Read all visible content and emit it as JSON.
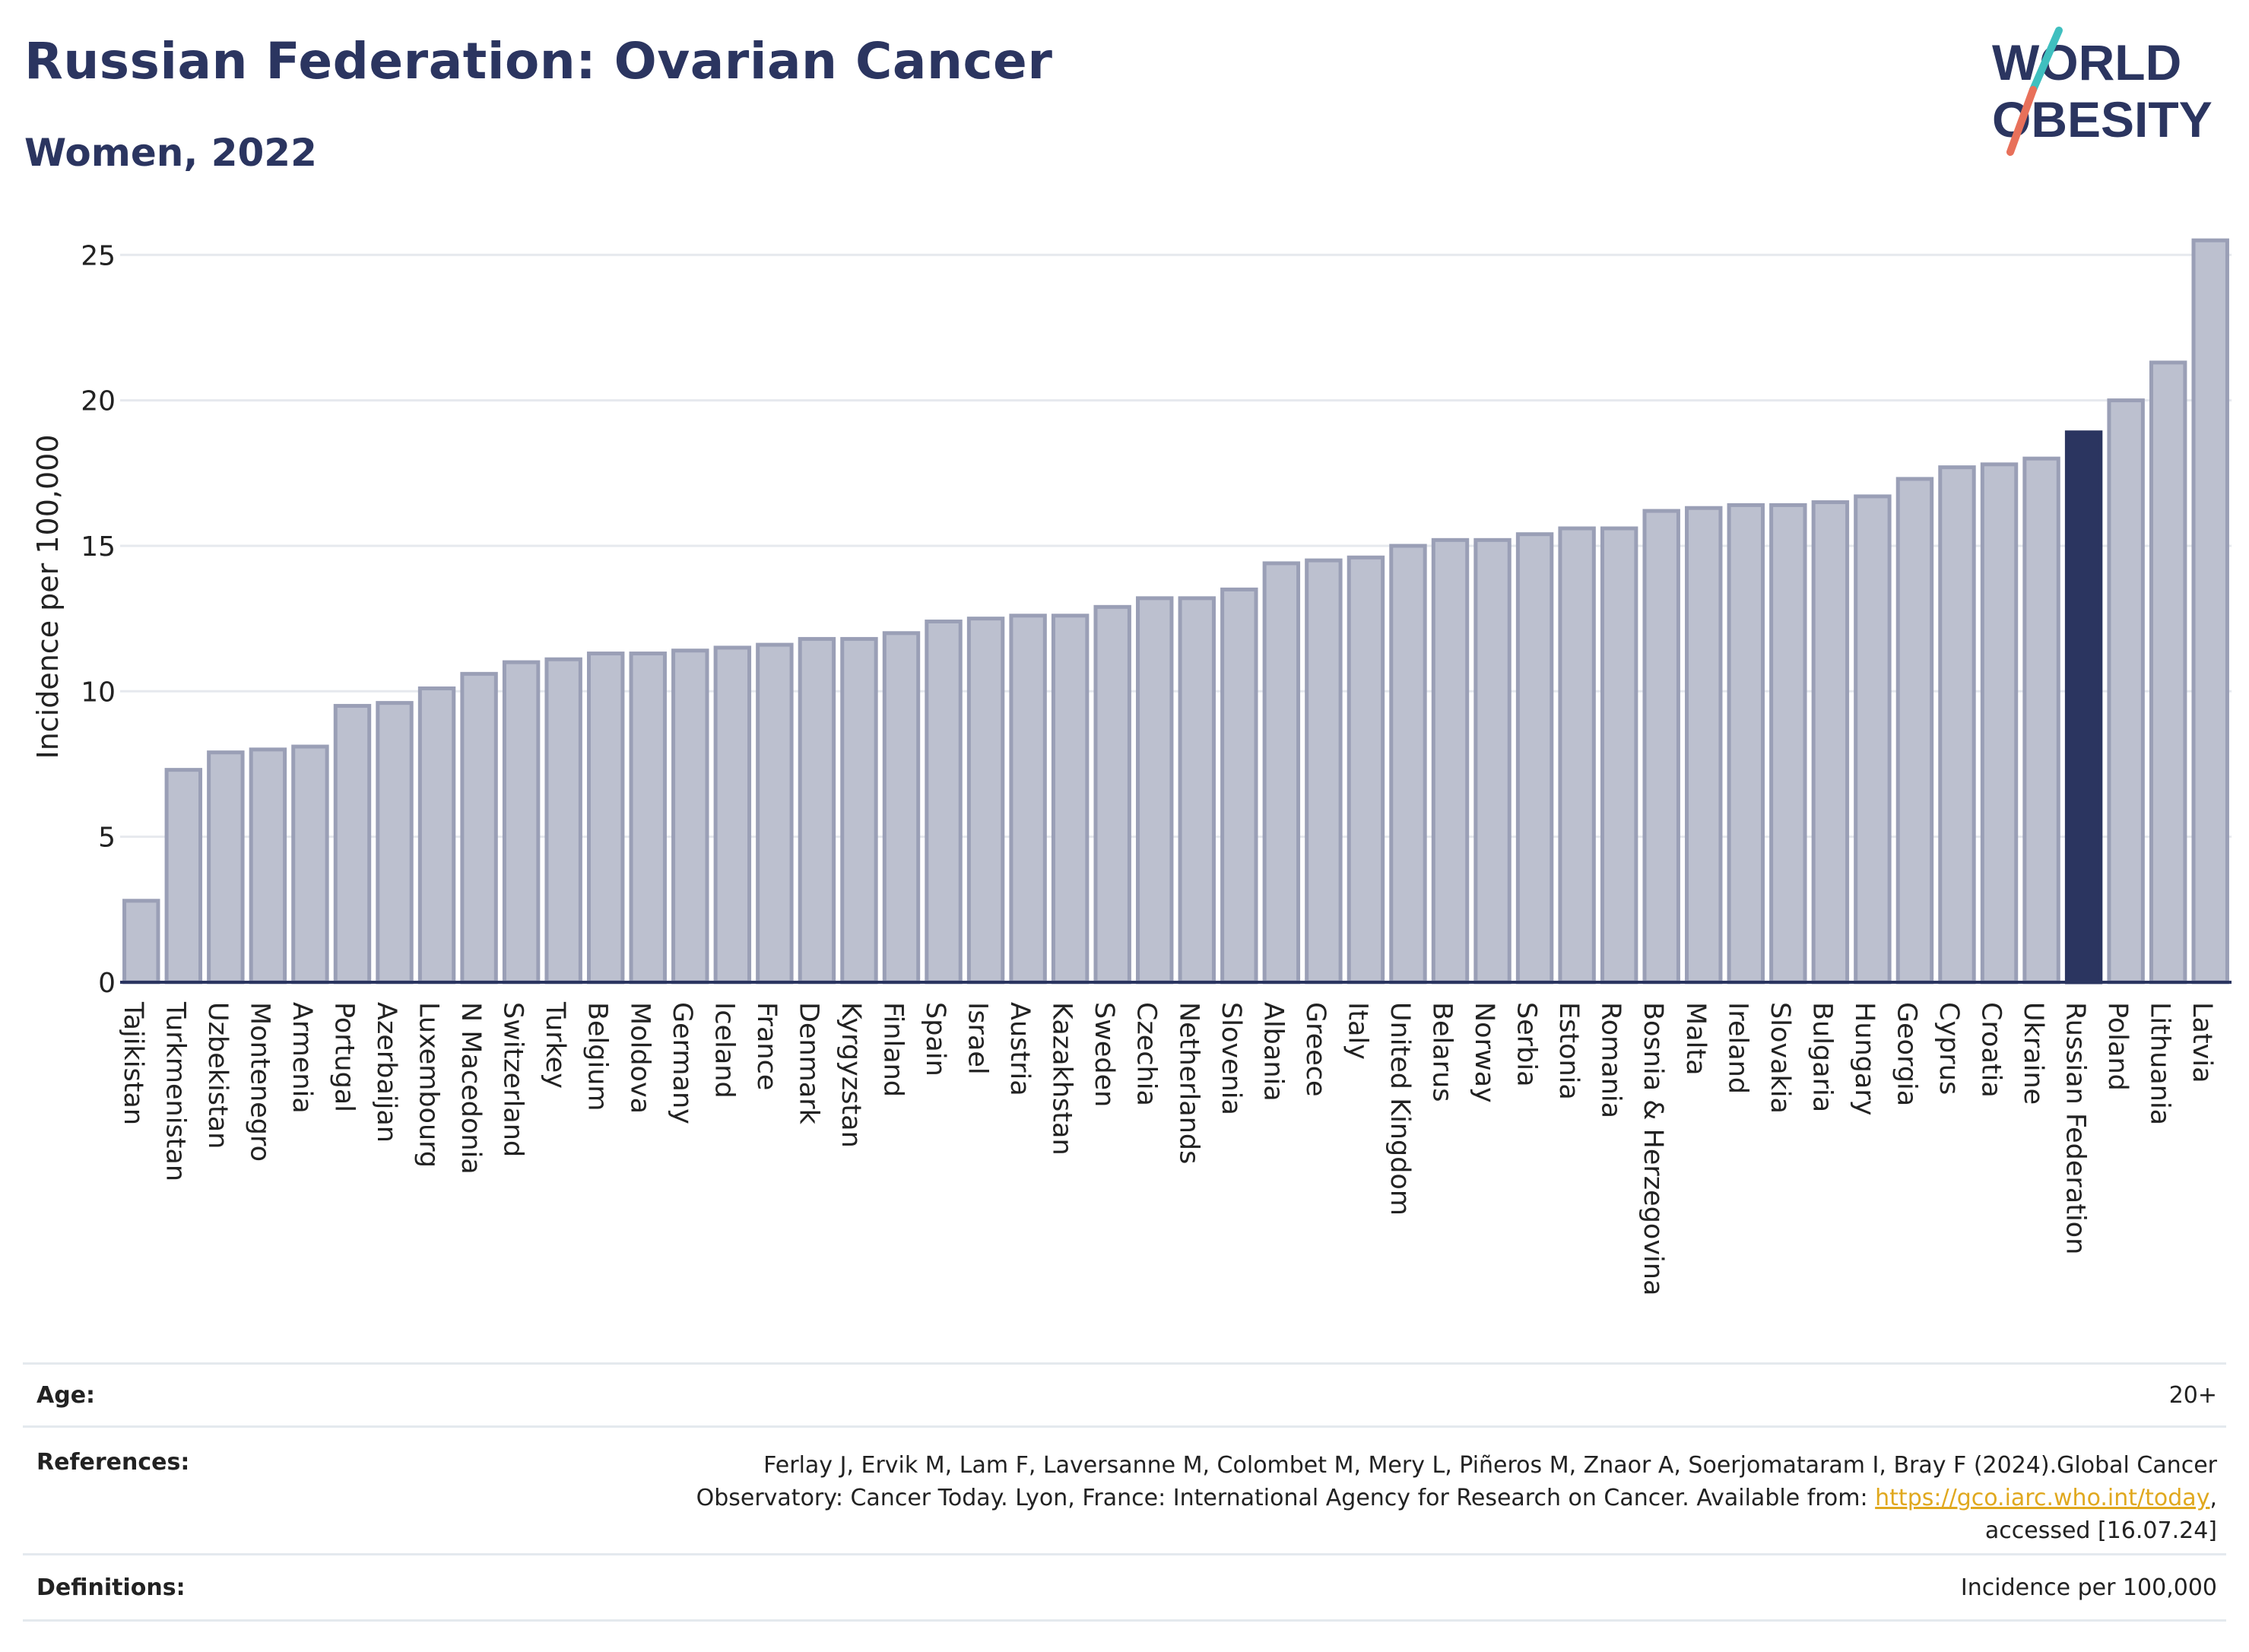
{
  "header": {
    "title": "Russian Federation: Ovarian Cancer",
    "subtitle": "Women, 2022"
  },
  "logo": {
    "line1": "WORLD",
    "line2": "OBESITY",
    "colors": {
      "text": "#2b3560",
      "slash_top": "#3fbfbf",
      "slash_bottom": "#e8705a"
    }
  },
  "colors": {
    "bar_default": "#bcc0cf",
    "bar_default_stroke": "#9a9fb6",
    "bar_highlight": "#2b3560",
    "grid": "#e6e9ee",
    "axis": "#2b3560"
  },
  "chart_data": {
    "type": "bar",
    "title": "Russian Federation: Ovarian Cancer",
    "subtitle": "Women, 2022",
    "xlabel": "",
    "ylabel": "Incidence per 100,000",
    "ylim": [
      0,
      26
    ],
    "yticks": [
      0,
      5,
      10,
      15,
      20,
      25
    ],
    "grid": true,
    "highlight": "Russian Federation",
    "categories": [
      "Tajikistan",
      "Turkmenistan",
      "Uzbekistan",
      "Montenegro",
      "Armenia",
      "Portugal",
      "Azerbaijan",
      "Luxembourg",
      "N Macedonia",
      "Switzerland",
      "Turkey",
      "Belgium",
      "Moldova",
      "Germany",
      "Iceland",
      "France",
      "Denmark",
      "Kyrgyzstan",
      "Finland",
      "Spain",
      "Israel",
      "Austria",
      "Kazakhstan",
      "Sweden",
      "Czechia",
      "Netherlands",
      "Slovenia",
      "Albania",
      "Greece",
      "Italy",
      "United Kingdom",
      "Belarus",
      "Norway",
      "Serbia",
      "Estonia",
      "Romania",
      "Bosnia & Herzegovina",
      "Malta",
      "Ireland",
      "Slovakia",
      "Bulgaria",
      "Hungary",
      "Georgia",
      "Cyprus",
      "Croatia",
      "Ukraine",
      "Russian Federation",
      "Poland",
      "Lithuania",
      "Latvia"
    ],
    "values": [
      2.8,
      7.3,
      7.9,
      8.0,
      8.1,
      9.5,
      9.6,
      10.1,
      10.6,
      11.0,
      11.1,
      11.3,
      11.3,
      11.4,
      11.5,
      11.6,
      11.8,
      11.8,
      12.0,
      12.4,
      12.5,
      12.6,
      12.6,
      12.9,
      13.2,
      13.2,
      13.5,
      14.4,
      14.5,
      14.6,
      15.0,
      15.2,
      15.2,
      15.4,
      15.6,
      15.6,
      16.2,
      16.3,
      16.4,
      16.4,
      16.5,
      16.7,
      17.3,
      17.7,
      17.8,
      18.0,
      18.9,
      20.0,
      21.3,
      25.5
    ]
  },
  "info": {
    "age_label": "Age:",
    "age_value": "20+",
    "references_label": "References:",
    "references_line1": "Ferlay J, Ervik M, Lam F, Laversanne M, Colombet M, Mery L, Piñeros M, Znaor A, Soerjomataram I, Bray F (2024).Global Cancer",
    "references_line2_prefix": "Observatory: Cancer Today. Lyon, France: International Agency for Research on Cancer. Available from:",
    "references_link": "https://gco.iarc.who.int/today",
    "references_line2_suffix": ",",
    "references_line3": "accessed [16.07.24]",
    "definitions_label": "Definitions:",
    "definitions_value": "Incidence per 100,000"
  }
}
